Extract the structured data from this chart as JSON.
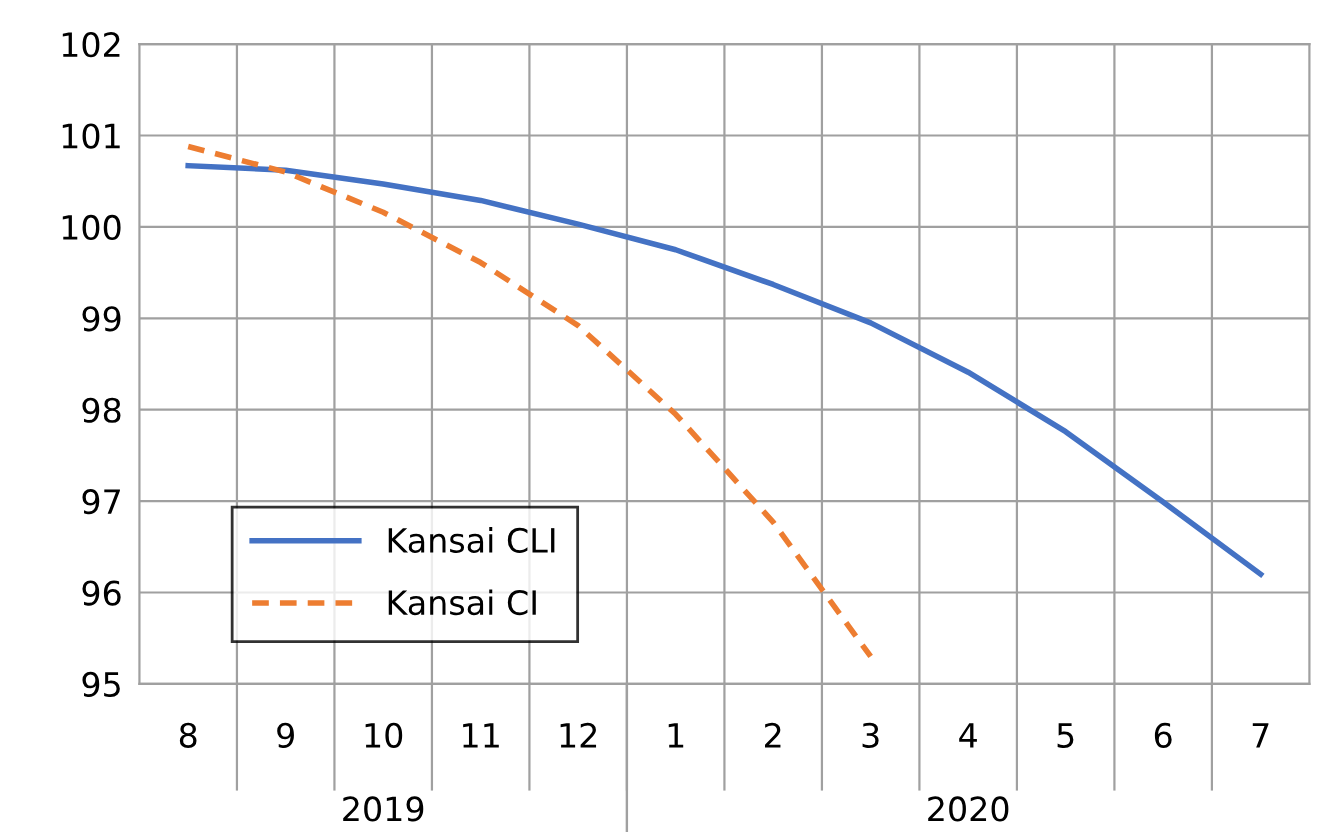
{
  "chart_data": {
    "type": "line",
    "categories": [
      "8",
      "9",
      "10",
      "11",
      "12",
      "1",
      "2",
      "3",
      "4",
      "5",
      "6",
      "7"
    ],
    "series": [
      {
        "name": "Kansai CLI",
        "color": "#4472c4",
        "line_style": "solid",
        "values": [
          100.67,
          100.62,
          100.47,
          100.29,
          100.03,
          99.75,
          99.37,
          98.95,
          98.41,
          97.76,
          96.99,
          96.2
        ]
      },
      {
        "name": "Kansai CI",
        "color": "#ed7d31",
        "line_style": "dashed",
        "values": [
          100.88,
          100.6,
          100.16,
          99.61,
          98.92,
          97.95,
          96.77,
          95.3,
          null,
          null,
          null,
          null
        ]
      }
    ],
    "ylim": [
      95,
      102
    ],
    "yticks": [
      95,
      96,
      97,
      98,
      99,
      100,
      101,
      102
    ],
    "grid": true,
    "legend": "bottom left",
    "marker": "none",
    "annotations": [
      "2019",
      "2020"
    ]
  }
}
